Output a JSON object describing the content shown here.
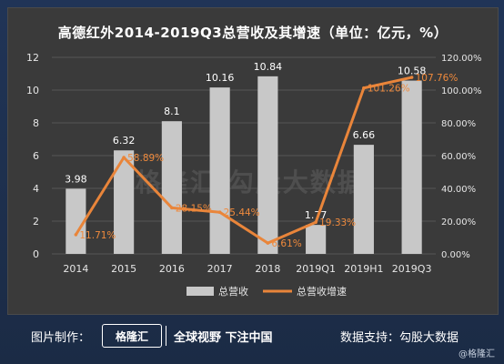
{
  "chart_data": {
    "type": "bar",
    "title": "高德红外2014-2019Q3总营收及其增速（单位：亿元，%）",
    "categories": [
      "2014",
      "2015",
      "2016",
      "2017",
      "2018",
      "2019Q1",
      "2019H1",
      "2019Q3"
    ],
    "series": [
      {
        "name": "总营收",
        "type": "bar",
        "axis": "left",
        "values": [
          3.98,
          6.32,
          8.1,
          10.16,
          10.84,
          1.77,
          6.66,
          10.58
        ],
        "labels": [
          "3.98",
          "6.32",
          "8.1",
          "10.16",
          "10.84",
          "1.77",
          "6.66",
          "10.58"
        ]
      },
      {
        "name": "总营收增速",
        "type": "line",
        "axis": "right",
        "values": [
          11.71,
          58.89,
          28.15,
          25.44,
          6.61,
          19.33,
          101.26,
          107.76
        ],
        "labels": [
          "11.71%",
          "58.89%",
          "28.15%",
          "25.44%",
          "6.61%",
          "19.33%",
          "101.26%",
          "107.76%"
        ]
      }
    ],
    "y_left": {
      "range": [
        0,
        12
      ],
      "ticks": [
        "0",
        "2",
        "4",
        "6",
        "8",
        "10",
        "12"
      ]
    },
    "y_right": {
      "range": [
        0,
        120
      ],
      "ticks": [
        "0.00%",
        "20.00%",
        "40.00%",
        "60.00%",
        "80.00%",
        "100.00%",
        "120.00%"
      ]
    },
    "grid": true,
    "legend": "bottom",
    "colors": {
      "bar": "#c8c8c8",
      "line": "#e9853a",
      "background": "#3a3a3a"
    }
  },
  "watermark": "格隆汇  勾股大数据",
  "footer": {
    "left_label": "图片制作：",
    "brand": "格隆汇",
    "slogan": "全球视野 下注中国",
    "right_label": "数据支持：",
    "right_source": "勾股大数据",
    "credit": "@格隆汇"
  }
}
